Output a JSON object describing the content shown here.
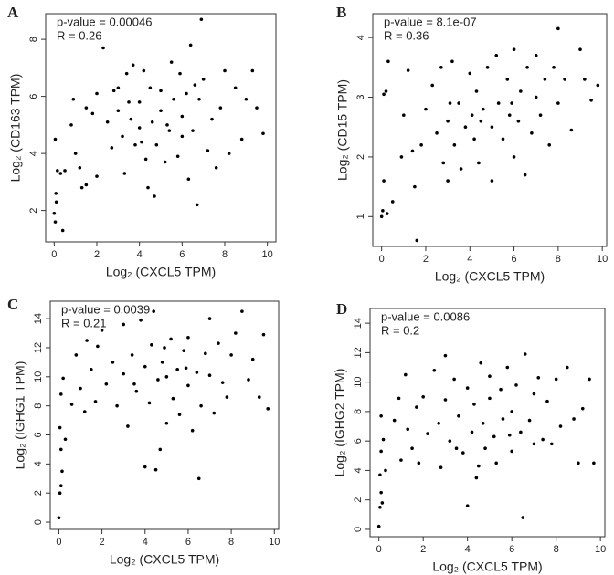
{
  "chart_data": [
    {
      "type": "scatter",
      "label": "A",
      "annotations": [
        "p-value = 0.00046",
        "R = 0.26"
      ],
      "xlabel": "Log₂ (CXCL5 TPM)",
      "ylabel": "Log₂ (CD163 TPM)",
      "color": "#000000",
      "xlim": [
        -0.4,
        10.4
      ],
      "ylim": [
        0.9,
        8.9
      ],
      "xticks": [
        0,
        2,
        4,
        6,
        8,
        10
      ],
      "yticks": [
        2,
        4,
        6,
        8
      ],
      "x": [
        0,
        0.05,
        0.1,
        0.08,
        0.15,
        0.3,
        0.4,
        0.05,
        0.5,
        0.8,
        0.9,
        1,
        1.2,
        1.3,
        1.5,
        1.5,
        1.8,
        2,
        2,
        2.3,
        2.5,
        2.7,
        2.8,
        3,
        3,
        3.2,
        3.3,
        3.4,
        3.5,
        3.7,
        3.8,
        4,
        4,
        4.2,
        4.3,
        4.4,
        4.5,
        4.6,
        4.7,
        4.8,
        5,
        5,
        5.2,
        5.4,
        5.5,
        5.6,
        5.8,
        6,
        6,
        6.2,
        6.3,
        6.4,
        6.5,
        6.7,
        6.8,
        6.9,
        7,
        7.2,
        7.4,
        7.6,
        7.8,
        8,
        8.2,
        8.5,
        8.8,
        9,
        9.3,
        9.5,
        9.8,
        5.3,
        4.1,
        3.6,
        6.6,
        5.9
      ],
      "values": [
        1.9,
        1.6,
        2.3,
        2.6,
        3.4,
        3.3,
        1.3,
        4.5,
        3.4,
        5,
        5.9,
        4,
        3.5,
        2.8,
        2.9,
        5.6,
        5.4,
        6.1,
        3.2,
        7.7,
        5.1,
        4.2,
        6.2,
        6.3,
        5.5,
        4.6,
        3.3,
        6.8,
        5.8,
        7.1,
        4.3,
        4.9,
        5.8,
        6.9,
        3.8,
        2.8,
        6.3,
        5.1,
        2.5,
        4.3,
        5.5,
        6.2,
        3.7,
        4.8,
        7.2,
        5.9,
        3.9,
        5.3,
        4.6,
        6.1,
        3.1,
        7.8,
        4.8,
        2.2,
        5.9,
        8.7,
        6.6,
        4.1,
        5.2,
        3.5,
        5.6,
        6.9,
        4,
        6.3,
        4.5,
        5.9,
        6.9,
        5.6,
        4.7,
        5,
        4.4,
        5.2,
        6.4,
        6.8
      ]
    },
    {
      "type": "scatter",
      "label": "B",
      "annotations": [
        "p-value = 8.1e-07",
        "R = 0.36"
      ],
      "xlabel": "Log₂ (CXCL5 TPM)",
      "ylabel": "Log₂ (CD15 TPM)",
      "color": "#000000",
      "xlim": [
        -0.4,
        10.2
      ],
      "ylim": [
        0.5,
        4.4
      ],
      "xticks": [
        0,
        2,
        4,
        6,
        8,
        10
      ],
      "yticks": [
        1,
        2,
        3,
        4
      ],
      "x": [
        0,
        0.05,
        0.1,
        0.1,
        0.2,
        0.25,
        0.5,
        0.3,
        0.9,
        1,
        1.2,
        1.4,
        1.5,
        1.6,
        1.8,
        2,
        2.3,
        2.5,
        2.7,
        2.8,
        3,
        3,
        3.2,
        3.3,
        3.5,
        3.6,
        3.8,
        4,
        4.1,
        4.2,
        4.3,
        4.4,
        4.6,
        4.8,
        5,
        5,
        5.2,
        5.3,
        5.5,
        5.7,
        5.8,
        6,
        6,
        6.2,
        6.3,
        6.5,
        6.6,
        6.8,
        7,
        7,
        7.2,
        7.4,
        7.6,
        7.8,
        8,
        8,
        8.3,
        8.6,
        9,
        9.2,
        9.5,
        9.8,
        3.1,
        4.5,
        5.9
      ],
      "values": [
        1,
        1.1,
        1.6,
        3.05,
        3.1,
        1.05,
        1.25,
        3.6,
        2,
        2.7,
        3.45,
        2.1,
        1.5,
        0.6,
        2.2,
        2.8,
        3.2,
        2.4,
        3.5,
        1.9,
        2.6,
        1.6,
        3.6,
        2.2,
        2.9,
        1.8,
        2.5,
        3.4,
        2.7,
        2.3,
        3.1,
        1.9,
        2.8,
        3.5,
        2.5,
        1.6,
        3.7,
        2.9,
        2.3,
        3.3,
        2.7,
        2,
        3.8,
        2.6,
        3.1,
        1.7,
        3.5,
        2.4,
        3,
        3.7,
        2.7,
        3.3,
        2.2,
        3.5,
        4.15,
        2.9,
        3.3,
        2.45,
        3.8,
        3.3,
        2.95,
        3.2,
        2.9,
        2.6,
        2.9
      ]
    },
    {
      "type": "scatter",
      "label": "C",
      "annotations": [
        "p-value = 0.0039",
        "R = 0.21"
      ],
      "xlabel": "Log₂ (CXCL5 TPM)",
      "ylabel": "Log₂ (IGHG1 TPM)",
      "color": "#000000",
      "xlim": [
        -0.4,
        10.2
      ],
      "ylim": [
        -0.5,
        15.2
      ],
      "xticks": [
        0,
        2,
        4,
        6,
        8,
        10
      ],
      "yticks": [
        0,
        2,
        4,
        6,
        8,
        10,
        12,
        14
      ],
      "x": [
        0,
        0.05,
        0.1,
        0.15,
        0.1,
        0.05,
        0.2,
        0.3,
        0.1,
        0.6,
        0.8,
        1,
        1.2,
        1.3,
        1.5,
        1.7,
        1.8,
        2,
        2.2,
        2.5,
        2.7,
        3,
        3,
        3.2,
        3.4,
        3.6,
        3.8,
        4,
        4,
        4.2,
        4.3,
        4.4,
        4.5,
        4.6,
        4.7,
        4.8,
        5,
        5,
        5.2,
        5.3,
        5.5,
        5.6,
        5.8,
        6,
        6,
        6.2,
        6.4,
        6.5,
        6.6,
        6.8,
        7,
        7,
        7.2,
        7.4,
        7.6,
        7.8,
        8,
        8.2,
        8.5,
        8.8,
        9,
        9.3,
        9.5,
        9.7,
        3.5,
        5.9,
        4.9
      ],
      "values": [
        0.3,
        2,
        2.5,
        3.5,
        5,
        6.5,
        9.9,
        5.7,
        8.8,
        8.1,
        11.5,
        9.2,
        7.6,
        12.5,
        10.5,
        8.3,
        12.1,
        13.2,
        9.5,
        11,
        8,
        10.2,
        13.6,
        6.6,
        11.5,
        9,
        13.9,
        10.7,
        3.8,
        8.2,
        12.2,
        14.5,
        3.6,
        9.8,
        5,
        11,
        10,
        6.8,
        12.6,
        8.5,
        10.5,
        7.4,
        11.8,
        9.4,
        12.7,
        6.3,
        10.3,
        3,
        8,
        11.6,
        10.1,
        14,
        7.5,
        12.3,
        9.6,
        8.6,
        11.5,
        13,
        14.5,
        9.8,
        11.2,
        8.6,
        12.9,
        7.8,
        9.5,
        10.6,
        12
      ]
    },
    {
      "type": "scatter",
      "label": "D",
      "annotations": [
        "p-value = 0.0086",
        "R = 0.2"
      ],
      "xlabel": "Log₂ (CXCL5 TPM)",
      "ylabel": "Log₂ (IGHG2 TPM)",
      "color": "#000000",
      "xlim": [
        -0.4,
        10.2
      ],
      "ylim": [
        -0.5,
        15
      ],
      "xticks": [
        0,
        2,
        4,
        6,
        8,
        10
      ],
      "yticks": [
        0,
        2,
        4,
        6,
        8,
        10,
        12,
        14
      ],
      "x": [
        0,
        0.05,
        0.1,
        0.15,
        0.05,
        0.1,
        0.2,
        0.3,
        0.1,
        0.7,
        0.9,
        1,
        1.2,
        1.3,
        1.5,
        1.7,
        1.8,
        2,
        2.2,
        2.5,
        2.7,
        2.8,
        3,
        3,
        3.2,
        3.4,
        3.6,
        3.8,
        4,
        4,
        4.2,
        4.3,
        4.4,
        4.5,
        4.6,
        4.7,
        4.8,
        5,
        5,
        5.2,
        5.3,
        5.5,
        5.6,
        5.8,
        6,
        6,
        6.2,
        6.4,
        6.5,
        6.6,
        6.8,
        7,
        7,
        7.2,
        7.4,
        7.6,
        7.8,
        8,
        8.2,
        8.5,
        8.8,
        9,
        9.2,
        9.5,
        9.7,
        3.5,
        5.9
      ],
      "values": [
        0.2,
        1.5,
        2.5,
        1.8,
        3.7,
        5.3,
        6.1,
        4,
        7.7,
        7.4,
        8.9,
        4.7,
        10.5,
        6.8,
        5.5,
        8.3,
        4.5,
        9,
        6.5,
        10.8,
        7.2,
        4.2,
        11.8,
        8.8,
        6,
        10.2,
        7.7,
        5.2,
        9.6,
        1.6,
        6.6,
        8.5,
        3.5,
        4.3,
        11.3,
        7.2,
        5.5,
        8.9,
        10.4,
        6.3,
        4.5,
        9.5,
        7.5,
        11,
        8,
        5.3,
        9.8,
        6.6,
        0.8,
        11.9,
        7.4,
        9.2,
        5.8,
        10.3,
        6.1,
        8.7,
        5.8,
        10.2,
        7,
        11,
        7.5,
        4.5,
        8.2,
        10.2,
        4.5,
        5.5,
        6.4
      ]
    }
  ]
}
